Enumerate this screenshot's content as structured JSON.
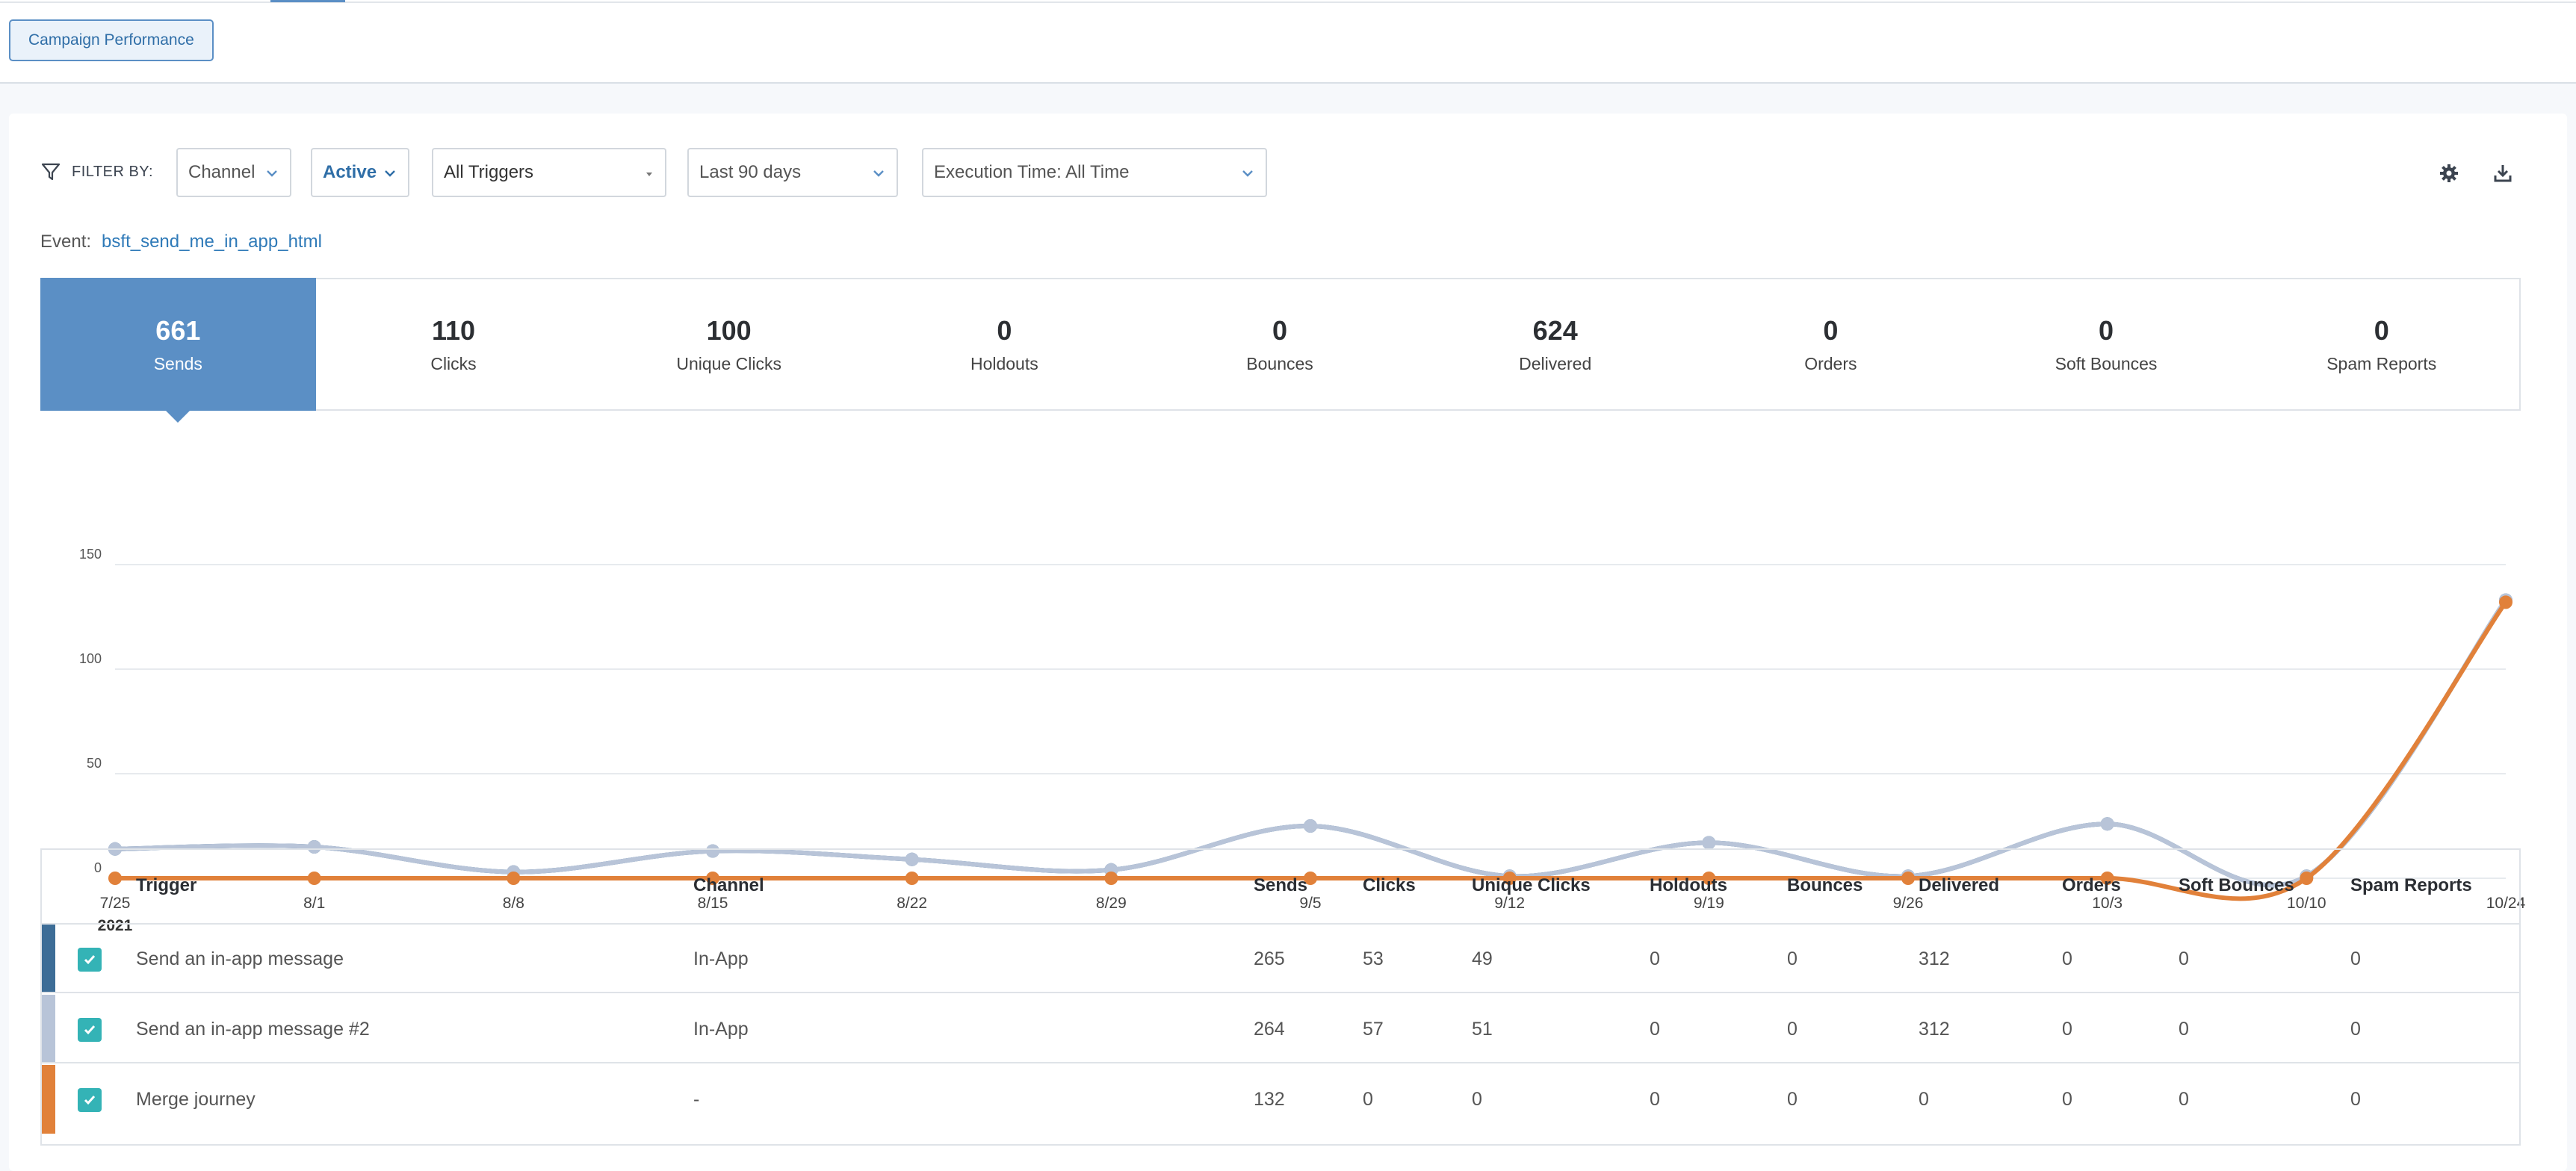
{
  "header": {
    "campaign_button": "Campaign Performance"
  },
  "filters": {
    "label": "FILTER BY:",
    "channel": "Channel",
    "status": "Active",
    "triggers": "All Triggers",
    "date_range": "Last 90 days",
    "execution_time": "Execution Time: All Time"
  },
  "event": {
    "label": "Event:",
    "value": "bsft_send_me_in_app_html"
  },
  "metrics": [
    {
      "value": "661",
      "label": "Sends"
    },
    {
      "value": "110",
      "label": "Clicks"
    },
    {
      "value": "100",
      "label": "Unique Clicks"
    },
    {
      "value": "0",
      "label": "Holdouts"
    },
    {
      "value": "0",
      "label": "Bounces"
    },
    {
      "value": "624",
      "label": "Delivered"
    },
    {
      "value": "0",
      "label": "Orders"
    },
    {
      "value": "0",
      "label": "Soft Bounces"
    },
    {
      "value": "0",
      "label": "Spam Reports"
    }
  ],
  "chart_data": {
    "type": "line",
    "x": [
      "7/25",
      "8/1",
      "8/8",
      "8/15",
      "8/22",
      "8/29",
      "9/5",
      "9/12",
      "9/19",
      "9/26",
      "10/3",
      "10/10",
      "10/24"
    ],
    "year_label": "2021",
    "yticks": [
      0,
      50,
      100,
      150
    ],
    "ylim": [
      0,
      150
    ],
    "grid": true,
    "series": [
      {
        "color": "#3d6d97",
        "values": [
          14,
          15,
          3,
          13,
          9,
          4,
          25,
          1,
          17,
          1,
          26,
          1,
          133
        ]
      },
      {
        "color": "#b8c4d8",
        "values": [
          14,
          15,
          3,
          13,
          9,
          4,
          25,
          1,
          17,
          1,
          26,
          1,
          133
        ]
      },
      {
        "color": "#e1813a",
        "values": [
          0,
          0,
          0,
          0,
          0,
          0,
          0,
          0,
          0,
          0,
          0,
          0,
          132
        ]
      }
    ]
  },
  "table": {
    "headers": [
      "Trigger",
      "Channel",
      "Sends",
      "Clicks",
      "Unique Clicks",
      "Holdouts",
      "Bounces",
      "Delivered",
      "Orders",
      "Soft Bounces",
      "Spam Reports"
    ],
    "rows": [
      {
        "color": "#3d6d97",
        "cells": [
          "Send an in-app message",
          "In-App",
          "265",
          "53",
          "49",
          "0",
          "0",
          "312",
          "0",
          "0",
          "0"
        ]
      },
      {
        "color": "#b8c4d8",
        "cells": [
          "Send an in-app message #2",
          "In-App",
          "264",
          "57",
          "51",
          "0",
          "0",
          "312",
          "0",
          "0",
          "0"
        ]
      },
      {
        "color": "#e1813a",
        "cells": [
          "Merge journey",
          "-",
          "132",
          "0",
          "0",
          "0",
          "0",
          "0",
          "0",
          "0",
          "0"
        ]
      }
    ]
  }
}
